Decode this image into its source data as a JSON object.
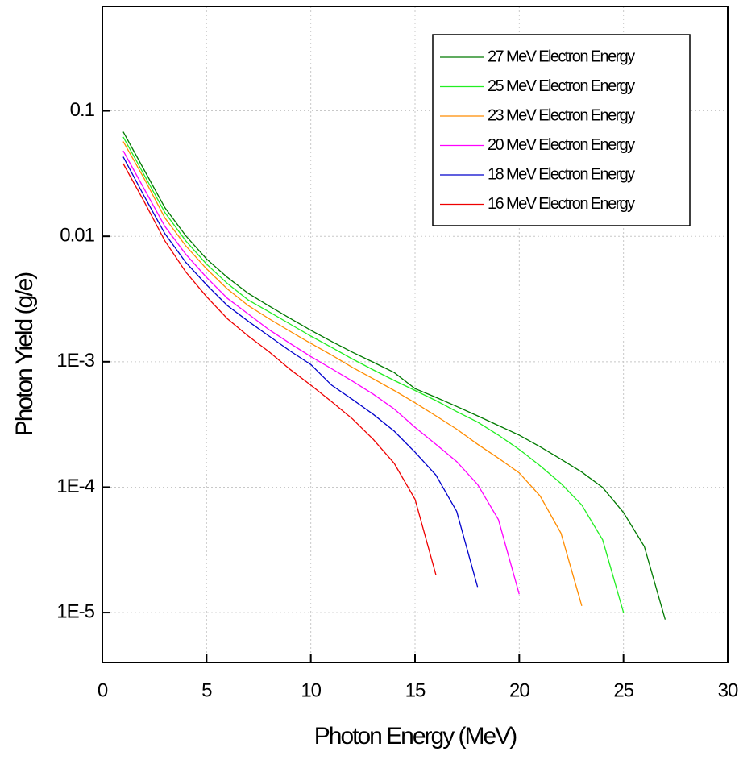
{
  "chart_data": {
    "type": "line",
    "x_label": "Photon Energy (MeV)",
    "y_label": "Photon Yield (g/e)",
    "xlim": [
      0,
      30
    ],
    "xticks": [
      0,
      5,
      10,
      15,
      20,
      25,
      30
    ],
    "ylim": [
      4e-06,
      0.68
    ],
    "log_y": true,
    "yticks": [
      {
        "value": 1e-05,
        "label": "1E-5"
      },
      {
        "value": 0.0001,
        "label": "1E-4"
      },
      {
        "value": 0.001,
        "label": "1E-3"
      },
      0.01,
      0.1
    ],
    "grid": true,
    "legend": "upper right",
    "series": [
      {
        "name": "27 MeV Electron Energy",
        "color": "#007a00",
        "x": [
          1,
          2,
          3,
          4,
          5,
          6,
          7,
          8,
          9,
          10,
          11,
          12,
          13,
          14,
          15,
          16,
          17,
          18,
          19,
          20,
          21,
          22,
          23,
          24,
          25,
          26,
          27
        ],
        "values": [
          0.068,
          0.034,
          0.0169,
          0.0101,
          0.0066,
          0.0047,
          0.0035,
          0.00278,
          0.00222,
          0.00178,
          0.00145,
          0.00119,
          0.00099,
          0.00082,
          0.00061,
          0.00052,
          0.00044,
          0.00037,
          0.00031,
          0.00026,
          0.00021,
          0.000167,
          0.000132,
          9.93e-05,
          6.27e-05,
          3.37e-05,
          8.8e-06
        ]
      },
      {
        "name": "25 MeV Electron Energy",
        "color": "#22ee22",
        "x": [
          1,
          2,
          3,
          4,
          5,
          6,
          7,
          8,
          9,
          10,
          11,
          12,
          13,
          14,
          15,
          16,
          17,
          18,
          19,
          20,
          21,
          22,
          23,
          24,
          25
        ],
        "values": [
          0.062,
          0.031,
          0.0155,
          0.0092,
          0.006,
          0.0042,
          0.0031,
          0.0025,
          0.002,
          0.0016,
          0.0013,
          0.00105,
          0.00086,
          0.00071,
          0.00059,
          0.00049,
          0.0004,
          0.00033,
          0.00026,
          0.0002,
          0.000148,
          0.000107,
          7.2e-05,
          3.8e-05,
          1e-05
        ]
      },
      {
        "name": "23 MeV Electron Energy",
        "color": "#ff8c00",
        "x": [
          1,
          2,
          3,
          4,
          5,
          6,
          7,
          8,
          9,
          10,
          11,
          12,
          13,
          14,
          15,
          16,
          17,
          18,
          19,
          20,
          21,
          22,
          23
        ],
        "values": [
          0.057,
          0.029,
          0.014,
          0.0084,
          0.0055,
          0.0038,
          0.0028,
          0.0022,
          0.00175,
          0.0014,
          0.00113,
          0.0009,
          0.00073,
          0.00059,
          0.00047,
          0.00037,
          0.00029,
          0.00022,
          0.00017,
          0.00013,
          8.5e-05,
          4.3e-05,
          1.13e-05
        ]
      },
      {
        "name": "20 MeV Electron Energy",
        "color": "#ff00ff",
        "x": [
          1,
          2,
          3,
          4,
          5,
          6,
          7,
          8,
          9,
          10,
          11,
          12,
          13,
          14,
          15,
          16,
          17,
          18,
          19,
          20
        ],
        "values": [
          0.048,
          0.024,
          0.012,
          0.0072,
          0.0047,
          0.0032,
          0.0024,
          0.0018,
          0.0014,
          0.0011,
          0.00088,
          0.0007,
          0.00055,
          0.00042,
          0.0003,
          0.00022,
          0.00016,
          0.000105,
          5.5e-05,
          1.4e-05
        ]
      },
      {
        "name": "18 MeV Electron Energy",
        "color": "#0000cc",
        "x": [
          1,
          2,
          3,
          4,
          5,
          6,
          7,
          8,
          9,
          10,
          11,
          12,
          13,
          14,
          15,
          16,
          17,
          18
        ],
        "values": [
          0.043,
          0.021,
          0.0105,
          0.0062,
          0.0041,
          0.0028,
          0.0021,
          0.0016,
          0.00122,
          0.00095,
          0.00065,
          0.0005,
          0.00038,
          0.00028,
          0.00019,
          0.000125,
          6.4e-05,
          1.6e-05
        ]
      },
      {
        "name": "16 MeV Electron Energy",
        "color": "#ee0000",
        "x": [
          1,
          2,
          3,
          4,
          5,
          6,
          7,
          8,
          9,
          10,
          11,
          12,
          13,
          14,
          15,
          16
        ],
        "values": [
          0.038,
          0.019,
          0.0092,
          0.0052,
          0.0033,
          0.0022,
          0.0016,
          0.0012,
          0.00087,
          0.00065,
          0.00048,
          0.00035,
          0.00024,
          0.000155,
          8e-05,
          2e-05
        ]
      }
    ]
  }
}
